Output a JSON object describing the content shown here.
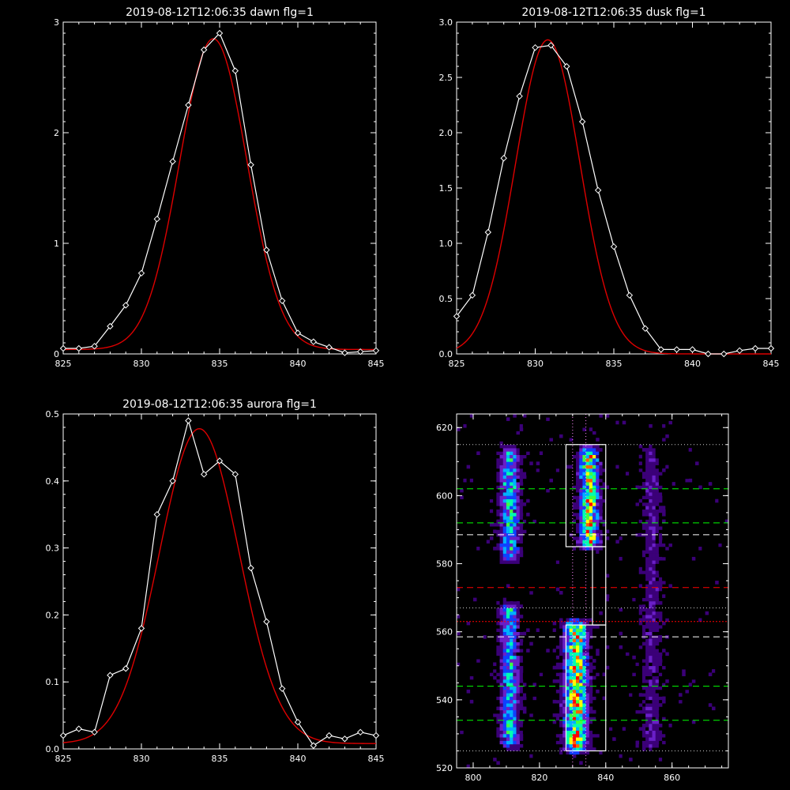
{
  "chart_data": [
    {
      "type": "line",
      "title": "2019-08-12T12:06:35 dawn flg=1",
      "xlim": [
        825,
        845
      ],
      "ylim": [
        0,
        3
      ],
      "xticks": [
        "825",
        "830",
        "835",
        "840",
        "845"
      ],
      "yticks": [
        "0",
        "1",
        "2",
        "3"
      ],
      "series": [
        {
          "kind": "measured",
          "color": "#ffffff",
          "marker": "diamond",
          "x": [
            825,
            826,
            827,
            828,
            829,
            830,
            831,
            832,
            833,
            834,
            835,
            836,
            837,
            838,
            839,
            840,
            841,
            842,
            843,
            844,
            845
          ],
          "y": [
            0.05,
            0.05,
            0.07,
            0.25,
            0.44,
            0.73,
            1.22,
            1.74,
            2.25,
            2.75,
            2.9,
            2.56,
            1.71,
            0.94,
            0.48,
            0.19,
            0.11,
            0.06,
            0.01,
            0.02,
            0.03
          ]
        },
        {
          "kind": "fit",
          "color": "#dd0000",
          "model": "gaussian",
          "center": 834.6,
          "sigma": 2.15,
          "amplitude": 2.81,
          "offset": 0.04
        }
      ]
    },
    {
      "type": "line",
      "title": "2019-08-12T12:06:35 dusk flg=1",
      "xlim": [
        825,
        845
      ],
      "ylim": [
        0,
        3.0
      ],
      "xticks": [
        "825",
        "830",
        "835",
        "840",
        "845"
      ],
      "yticks": [
        "0.0",
        "0.5",
        "1.0",
        "1.5",
        "2.0",
        "2.5",
        "3.0"
      ],
      "series": [
        {
          "kind": "measured",
          "color": "#ffffff",
          "marker": "diamond",
          "x": [
            825,
            826,
            827,
            828,
            829,
            830,
            831,
            832,
            833,
            834,
            835,
            836,
            837,
            838,
            839,
            840,
            841,
            842,
            843,
            844,
            845
          ],
          "y": [
            0.34,
            0.53,
            1.1,
            1.77,
            2.33,
            2.77,
            2.79,
            2.6,
            2.1,
            1.48,
            0.97,
            0.53,
            0.23,
            0.04,
            0.04,
            0.04,
            0.0,
            0.0,
            0.03,
            0.05,
            0.05
          ]
        },
        {
          "kind": "fit",
          "color": "#dd0000",
          "model": "gaussian",
          "center": 830.8,
          "sigma": 2.05,
          "amplitude": 2.84,
          "offset": 0.0
        }
      ]
    },
    {
      "type": "line",
      "title": "2019-08-12T12:06:35 aurora flg=1",
      "xlim": [
        825,
        845
      ],
      "ylim": [
        0,
        0.5
      ],
      "xticks": [
        "825",
        "830",
        "835",
        "840",
        "845"
      ],
      "yticks": [
        "0.0",
        "0.1",
        "0.2",
        "0.3",
        "0.4",
        "0.5"
      ],
      "series": [
        {
          "kind": "measured",
          "color": "#ffffff",
          "marker": "diamond",
          "x": [
            825,
            826,
            827,
            828,
            829,
            830,
            831,
            832,
            833,
            834,
            835,
            836,
            837,
            838,
            839,
            840,
            841,
            842,
            843,
            844,
            845
          ],
          "y": [
            0.02,
            0.03,
            0.025,
            0.11,
            0.12,
            0.18,
            0.35,
            0.4,
            0.49,
            0.41,
            0.43,
            0.41,
            0.27,
            0.19,
            0.09,
            0.04,
            0.005,
            0.02,
            0.015,
            0.025,
            0.02
          ]
        },
        {
          "kind": "fit",
          "color": "#dd0000",
          "model": "gaussian",
          "center": 833.7,
          "sigma": 2.55,
          "amplitude": 0.47,
          "offset": 0.008
        }
      ]
    },
    {
      "type": "heatmap",
      "xlim": [
        795,
        877
      ],
      "ylim": [
        520,
        624
      ],
      "xticks": [
        "800",
        "820",
        "840",
        "860"
      ],
      "yticks": [
        "520",
        "540",
        "560",
        "580",
        "600",
        "620"
      ],
      "colormap": [
        "#000000",
        "#3b0078",
        "#6a1fc8",
        "#1040ff",
        "#00b0ff",
        "#00ffb0",
        "#40ff40",
        "#ffff00",
        "#ff6000",
        "#ff0000"
      ],
      "emission_columns": [
        {
          "center": 811,
          "halfwidth": 2.5,
          "rows": [
            527,
            566
          ],
          "peak": 0.55
        },
        {
          "center": 811,
          "halfwidth": 2.5,
          "rows": [
            582,
            612
          ],
          "peak": 0.6
        },
        {
          "center": 831,
          "halfwidth": 3.0,
          "rows": [
            526,
            561
          ],
          "peak": 1.0
        },
        {
          "center": 835,
          "halfwidth": 2.5,
          "rows": [
            586,
            612
          ],
          "peak": 0.95
        },
        {
          "center": 854,
          "halfwidth": 2.5,
          "rows": [
            527,
            612
          ],
          "peak": 0.18
        }
      ],
      "boxes": [
        {
          "x": [
            828,
            840
          ],
          "y": [
            525,
            562
          ]
        },
        {
          "x": [
            828,
            840
          ],
          "y": [
            585,
            615
          ]
        },
        {
          "x": [
            836,
            840
          ],
          "y": [
            562,
            585
          ]
        }
      ],
      "dotted_vertical": [
        830,
        834
      ],
      "dotted_horizontal": [
        525,
        567,
        615
      ],
      "horizontal_lines": [
        {
          "y": 534,
          "color": "#00ff00"
        },
        {
          "y": 544,
          "color": "#00ff00"
        },
        {
          "y": 558.5,
          "color": "#ffffff"
        },
        {
          "y": 563,
          "color": "#ff0000"
        },
        {
          "y": 573,
          "color": "#ff0000"
        },
        {
          "y": 588.5,
          "color": "#ffffff"
        },
        {
          "y": 592,
          "color": "#00ff00"
        },
        {
          "y": 602,
          "color": "#00ff00"
        }
      ]
    }
  ]
}
